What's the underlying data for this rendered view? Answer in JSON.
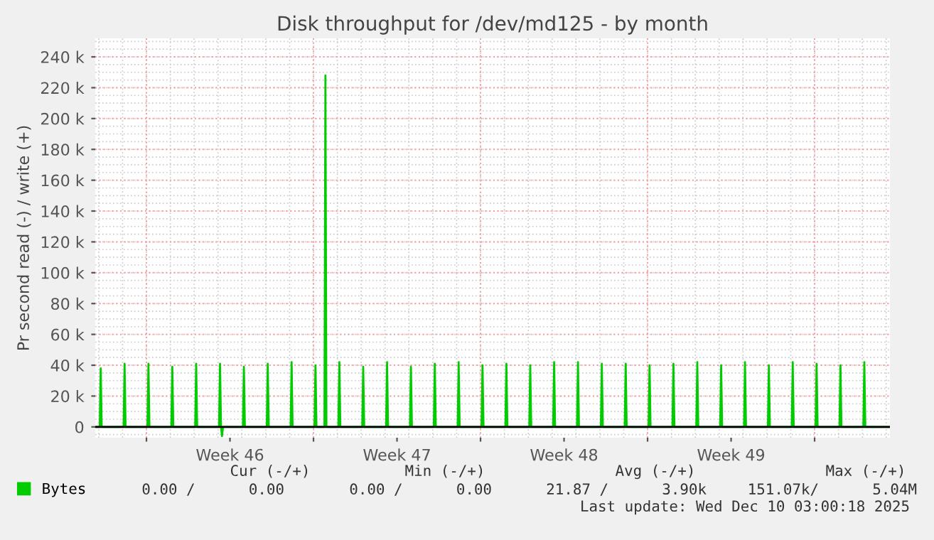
{
  "chart_data": {
    "type": "line",
    "title": "Disk throughput for /dev/md125 - by month",
    "ylabel": "Pr second read (-) / write (+)",
    "xlim": [
      "2025-11-07T20:30",
      "2025-12-11T03:45"
    ],
    "xticks": [
      {
        "value": "2025-11-10",
        "label": null
      },
      {
        "value": "2025-11-13T12:00",
        "label": "Week 46"
      },
      {
        "value": "2025-11-17",
        "label": null
      },
      {
        "value": "2025-11-20T12:00",
        "label": "Week 47"
      },
      {
        "value": "2025-11-24",
        "label": null
      },
      {
        "value": "2025-11-27T12:00",
        "label": "Week 48"
      },
      {
        "value": "2025-12-01",
        "label": null
      },
      {
        "value": "2025-12-04T12:00",
        "label": "Week 49"
      },
      {
        "value": "2025-12-08",
        "label": null
      }
    ],
    "ylim": [
      -7000,
      252000
    ],
    "yticks": [
      0,
      {
        "value": 20000,
        "label": "20 k"
      },
      {
        "value": 40000,
        "label": "40 k"
      },
      {
        "value": 60000,
        "label": "60 k"
      },
      {
        "value": 80000,
        "label": "80 k"
      },
      {
        "value": 100000,
        "label": "100 k"
      },
      {
        "value": 120000,
        "label": "120 k"
      },
      {
        "value": 140000,
        "label": "140 k"
      },
      {
        "value": 160000,
        "label": "160 k"
      },
      {
        "value": 180000,
        "label": "180 k"
      },
      {
        "value": 200000,
        "label": "200 k"
      },
      {
        "value": 220000,
        "label": "220 k"
      },
      {
        "value": 240000,
        "label": "240 k"
      }
    ],
    "grid": true,
    "legend": "bottom left",
    "marker": "none",
    "line_style": "solid",
    "ref_lines": [
      {
        "axis": "y",
        "value": 0,
        "color": "#000000"
      }
    ],
    "series": [
      {
        "name": "Bytes",
        "color": "#00cc00",
        "x": [
          "2025-11-07T21:00",
          "2025-11-08T01:00",
          "2025-11-08T02:00",
          "2025-11-08T03:00",
          "2025-11-09T01:00",
          "2025-11-09T02:00",
          "2025-11-09T03:00",
          "2025-11-10T01:00",
          "2025-11-10T02:00",
          "2025-11-10T03:00",
          "2025-11-11T01:00",
          "2025-11-11T02:00",
          "2025-11-11T03:00",
          "2025-11-12T01:00",
          "2025-11-12T02:00",
          "2025-11-12T03:00",
          "2025-11-13T01:00",
          "2025-11-13T02:00",
          "2025-11-13T03:00",
          "2025-11-13T04:00",
          "2025-11-13T05:00",
          "2025-11-14T01:00",
          "2025-11-14T02:00",
          "2025-11-14T03:00",
          "2025-11-15T01:00",
          "2025-11-15T02:00",
          "2025-11-15T03:00",
          "2025-11-16T01:00",
          "2025-11-16T02:00",
          "2025-11-16T03:00",
          "2025-11-17T01:00",
          "2025-11-17T02:00",
          "2025-11-17T03:00",
          "2025-11-17T11:00",
          "2025-11-17T12:00",
          "2025-11-17T13:00",
          "2025-11-18T01:00",
          "2025-11-18T02:00",
          "2025-11-18T03:00",
          "2025-11-19T01:00",
          "2025-11-19T02:00",
          "2025-11-19T03:00",
          "2025-11-20T01:00",
          "2025-11-20T02:00",
          "2025-11-20T03:00",
          "2025-11-21T01:00",
          "2025-11-21T02:00",
          "2025-11-21T03:00",
          "2025-11-22T01:00",
          "2025-11-22T02:00",
          "2025-11-22T03:00",
          "2025-11-23T01:00",
          "2025-11-23T02:00",
          "2025-11-23T03:00",
          "2025-11-24T01:00",
          "2025-11-24T02:00",
          "2025-11-24T03:00",
          "2025-11-25T01:00",
          "2025-11-25T02:00",
          "2025-11-25T03:00",
          "2025-11-26T01:00",
          "2025-11-26T02:00",
          "2025-11-26T03:00",
          "2025-11-27T01:00",
          "2025-11-27T02:00",
          "2025-11-27T03:00",
          "2025-11-28T01:00",
          "2025-11-28T02:00",
          "2025-11-28T03:00",
          "2025-11-29T01:00",
          "2025-11-29T02:00",
          "2025-11-29T03:00",
          "2025-11-30T01:00",
          "2025-11-30T02:00",
          "2025-11-30T03:00",
          "2025-12-01T01:00",
          "2025-12-01T02:00",
          "2025-12-01T03:00",
          "2025-12-02T01:00",
          "2025-12-02T02:00",
          "2025-12-02T03:00",
          "2025-12-03T01:00",
          "2025-12-03T02:00",
          "2025-12-03T03:00",
          "2025-12-04T01:00",
          "2025-12-04T02:00",
          "2025-12-04T03:00",
          "2025-12-05T01:00",
          "2025-12-05T02:00",
          "2025-12-05T03:00",
          "2025-12-06T01:00",
          "2025-12-06T02:00",
          "2025-12-06T03:00",
          "2025-12-07T01:00",
          "2025-12-07T02:00",
          "2025-12-07T03:00",
          "2025-12-08T01:00",
          "2025-12-08T02:00",
          "2025-12-08T03:00",
          "2025-12-09T01:00",
          "2025-12-09T02:00",
          "2025-12-09T03:00",
          "2025-12-10T01:00",
          "2025-12-10T02:00",
          "2025-12-10T03:00",
          "2025-12-11T03:00"
        ],
        "values": [
          0,
          0,
          38000,
          0,
          0,
          41000,
          0,
          0,
          41000,
          0,
          0,
          39000,
          0,
          0,
          41000,
          0,
          0,
          41000,
          0,
          -6000,
          0,
          0,
          39000,
          0,
          0,
          41000,
          0,
          0,
          42000,
          0,
          0,
          40000,
          0,
          0,
          228000,
          0,
          0,
          42000,
          0,
          0,
          39000,
          0,
          0,
          42000,
          0,
          0,
          39000,
          0,
          0,
          41000,
          0,
          0,
          42000,
          0,
          0,
          40000,
          0,
          0,
          41000,
          0,
          0,
          40000,
          0,
          0,
          42000,
          0,
          0,
          42000,
          0,
          0,
          41000,
          0,
          0,
          41000,
          0,
          0,
          40000,
          0,
          0,
          41000,
          0,
          0,
          42000,
          0,
          0,
          40000,
          0,
          0,
          42000,
          0,
          0,
          40000,
          0,
          0,
          42000,
          0,
          0,
          41000,
          0,
          0,
          40000,
          0,
          0,
          42000,
          0,
          0
        ]
      }
    ],
    "annotations": [
      "Cur (-/+)",
      "Min (-/+)",
      "Avg (-/+)",
      "Max (-/+)",
      "0.00 /      0.00",
      "0.00 /      0.00",
      "21.87 /      3.90k",
      "151.07k/      5.04M",
      "Last update: Wed Dec 10 03:00:18 2025"
    ]
  }
}
